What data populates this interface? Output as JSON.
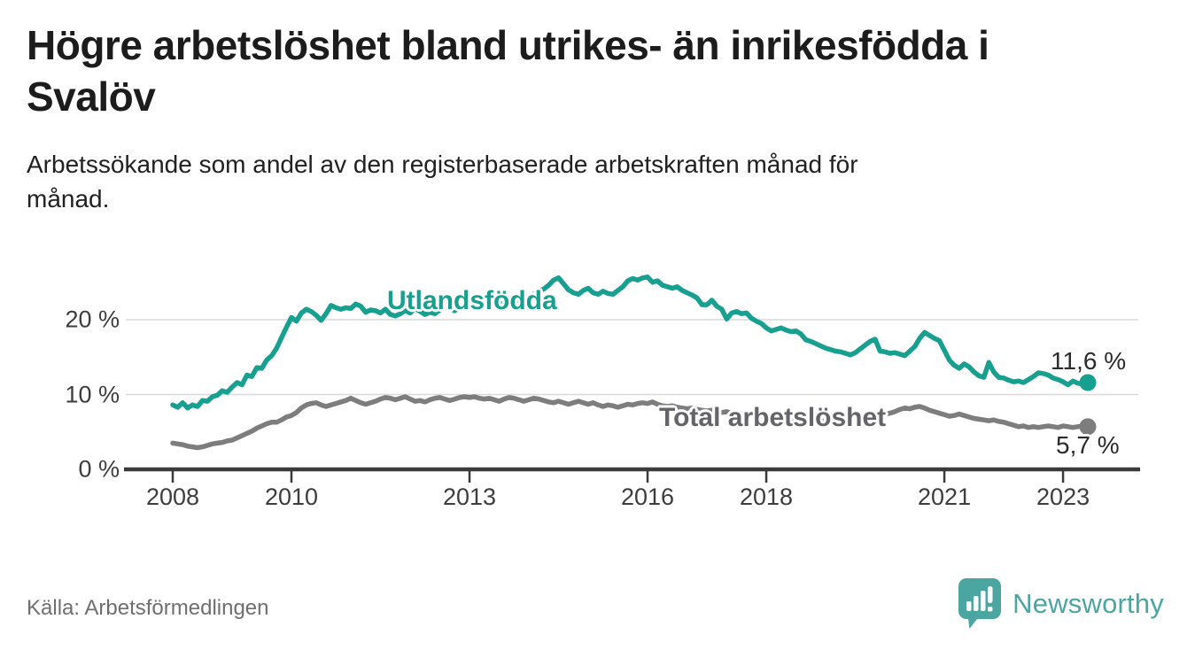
{
  "header": {
    "title_line1": "Högre arbetslöshet bland utrikes- än inrikesfödda i",
    "title_line2": "Svalöv",
    "subtitle_line1": "Arbetssökande som andel av den registerbaserade arbetskraften månad för",
    "subtitle_line2": "månad."
  },
  "footer": {
    "source": "Källa: Arbetsförmedlingen",
    "brand_name": "Newsworthy"
  },
  "colors": {
    "foreign_born_line": "#17a08f",
    "total_line": "#7d7d7d",
    "axis": "#3a3a3a",
    "gridline": "#d9d9d9",
    "brand_teal": "#4ba5a1"
  },
  "chart_data": {
    "type": "line",
    "unit": "%",
    "x_unit": "month",
    "x_range": [
      "2008-01",
      "2023-06"
    ],
    "ylim": [
      0,
      27
    ],
    "grid": "horizontal-only",
    "y_ticks": [
      {
        "value": 20,
        "label": "20 %"
      },
      {
        "value": 10,
        "label": "10 %"
      },
      {
        "value": 0,
        "label": "0 %"
      }
    ],
    "x_ticks": [
      {
        "year": 2008,
        "label": "2008"
      },
      {
        "year": 2010,
        "label": "2010"
      },
      {
        "year": 2013,
        "label": "2013"
      },
      {
        "year": 2016,
        "label": "2016"
      },
      {
        "year": 2018,
        "label": "2018"
      },
      {
        "year": 2021,
        "label": "2021"
      },
      {
        "year": 2023,
        "label": "2023"
      }
    ],
    "series": [
      {
        "label": "Utlandsfödda",
        "color": "#17a08f",
        "end_label": "11,6 %",
        "end_value": 11.6,
        "values": [
          8.6,
          8.3,
          8.9,
          8.2,
          8.6,
          8.4,
          9.2,
          9.1,
          9.7,
          9.9,
          10.5,
          10.3,
          11.0,
          11.6,
          11.3,
          12.6,
          12.4,
          13.6,
          13.5,
          14.6,
          15.2,
          16.2,
          17.6,
          19.0,
          20.3,
          19.8,
          20.9,
          21.4,
          21.1,
          20.6,
          19.9,
          20.8,
          21.9,
          21.6,
          21.4,
          21.6,
          21.5,
          22.1,
          21.8,
          21.0,
          21.3,
          21.2,
          20.9,
          21.4,
          20.7,
          20.5,
          20.8,
          21.2,
          20.9,
          21.5,
          21.1,
          20.7,
          21.0,
          20.8,
          21.3,
          21.8,
          21.5,
          21.2,
          21.7,
          22.0,
          22.2,
          22.6,
          22.4,
          22.1,
          21.9,
          22.2,
          22.0,
          22.3,
          22.8,
          22.3,
          22.9,
          23.2,
          22.9,
          23.4,
          23.8,
          24.1,
          24.6,
          25.3,
          25.6,
          24.8,
          24.0,
          23.6,
          23.4,
          23.9,
          24.2,
          23.6,
          23.4,
          23.8,
          23.5,
          23.4,
          23.9,
          24.4,
          25.2,
          25.5,
          25.3,
          25.6,
          25.7,
          25.0,
          25.2,
          24.6,
          24.4,
          24.2,
          24.4,
          23.9,
          23.6,
          23.3,
          22.9,
          22.0,
          22.0,
          22.6,
          21.8,
          21.4,
          20.1,
          20.9,
          21.1,
          20.8,
          20.9,
          20.2,
          19.8,
          19.5,
          18.9,
          18.5,
          18.7,
          18.9,
          18.6,
          18.4,
          18.5,
          18.1,
          17.3,
          17.1,
          16.8,
          16.5,
          16.2,
          16.0,
          15.8,
          15.7,
          15.5,
          15.3,
          15.6,
          16.1,
          16.6,
          17.1,
          17.4,
          15.8,
          15.7,
          15.5,
          15.6,
          15.4,
          15.2,
          15.8,
          16.4,
          17.5,
          18.3,
          17.9,
          17.5,
          17.2,
          15.9,
          14.6,
          13.9,
          13.5,
          14.1,
          13.7,
          13.0,
          12.5,
          12.3,
          14.3,
          13.0,
          12.3,
          12.2,
          11.9,
          11.7,
          11.8,
          11.6,
          12.0,
          12.4,
          12.9,
          12.8,
          12.6,
          12.2,
          12.0,
          11.7,
          11.3,
          11.8,
          11.5,
          11.4,
          11.6
        ]
      },
      {
        "label": "Total arbetslöshet",
        "color": "#7d7d7d",
        "end_label": "5,7 %",
        "end_value": 5.7,
        "values": [
          3.5,
          3.4,
          3.3,
          3.1,
          3.0,
          2.9,
          3.0,
          3.2,
          3.4,
          3.5,
          3.6,
          3.8,
          3.9,
          4.2,
          4.5,
          4.8,
          5.1,
          5.5,
          5.8,
          6.1,
          6.3,
          6.3,
          6.6,
          7.0,
          7.2,
          7.6,
          8.2,
          8.6,
          8.8,
          8.9,
          8.6,
          8.4,
          8.6,
          8.8,
          9.0,
          9.2,
          9.5,
          9.2,
          8.9,
          8.7,
          8.9,
          9.1,
          9.4,
          9.6,
          9.5,
          9.3,
          9.5,
          9.7,
          9.4,
          9.1,
          9.2,
          9.0,
          9.3,
          9.5,
          9.6,
          9.4,
          9.2,
          9.4,
          9.6,
          9.7,
          9.6,
          9.7,
          9.5,
          9.4,
          9.5,
          9.3,
          9.1,
          9.4,
          9.6,
          9.5,
          9.3,
          9.1,
          9.3,
          9.5,
          9.4,
          9.2,
          9.0,
          8.9,
          9.1,
          8.9,
          8.7,
          8.9,
          9.1,
          8.9,
          8.7,
          8.9,
          8.6,
          8.4,
          8.6,
          8.5,
          8.3,
          8.5,
          8.7,
          8.6,
          8.8,
          8.9,
          8.8,
          9.0,
          8.7,
          8.5,
          8.4,
          8.5,
          8.3,
          8.2,
          8.1,
          8.2,
          8.0,
          7.9,
          7.8,
          7.9,
          7.7,
          7.6,
          7.7,
          7.5,
          7.6,
          7.4,
          7.3,
          7.4,
          7.2,
          7.1,
          7.0,
          7.1,
          6.9,
          6.8,
          6.9,
          6.7,
          6.8,
          6.6,
          6.5,
          6.6,
          6.4,
          6.5,
          6.4,
          6.5,
          6.3,
          6.4,
          6.2,
          6.3,
          6.5,
          6.6,
          6.8,
          6.9,
          7.0,
          7.2,
          7.4,
          7.5,
          7.7,
          8.0,
          8.2,
          8.1,
          8.3,
          8.4,
          8.2,
          7.9,
          7.7,
          7.5,
          7.3,
          7.1,
          7.2,
          7.4,
          7.2,
          7.0,
          6.8,
          6.7,
          6.6,
          6.5,
          6.6,
          6.4,
          6.3,
          6.1,
          5.9,
          5.7,
          5.8,
          5.6,
          5.7,
          5.6,
          5.7,
          5.8,
          5.7,
          5.6,
          5.8,
          5.7,
          5.6,
          5.7,
          5.8,
          5.7
        ]
      }
    ]
  }
}
